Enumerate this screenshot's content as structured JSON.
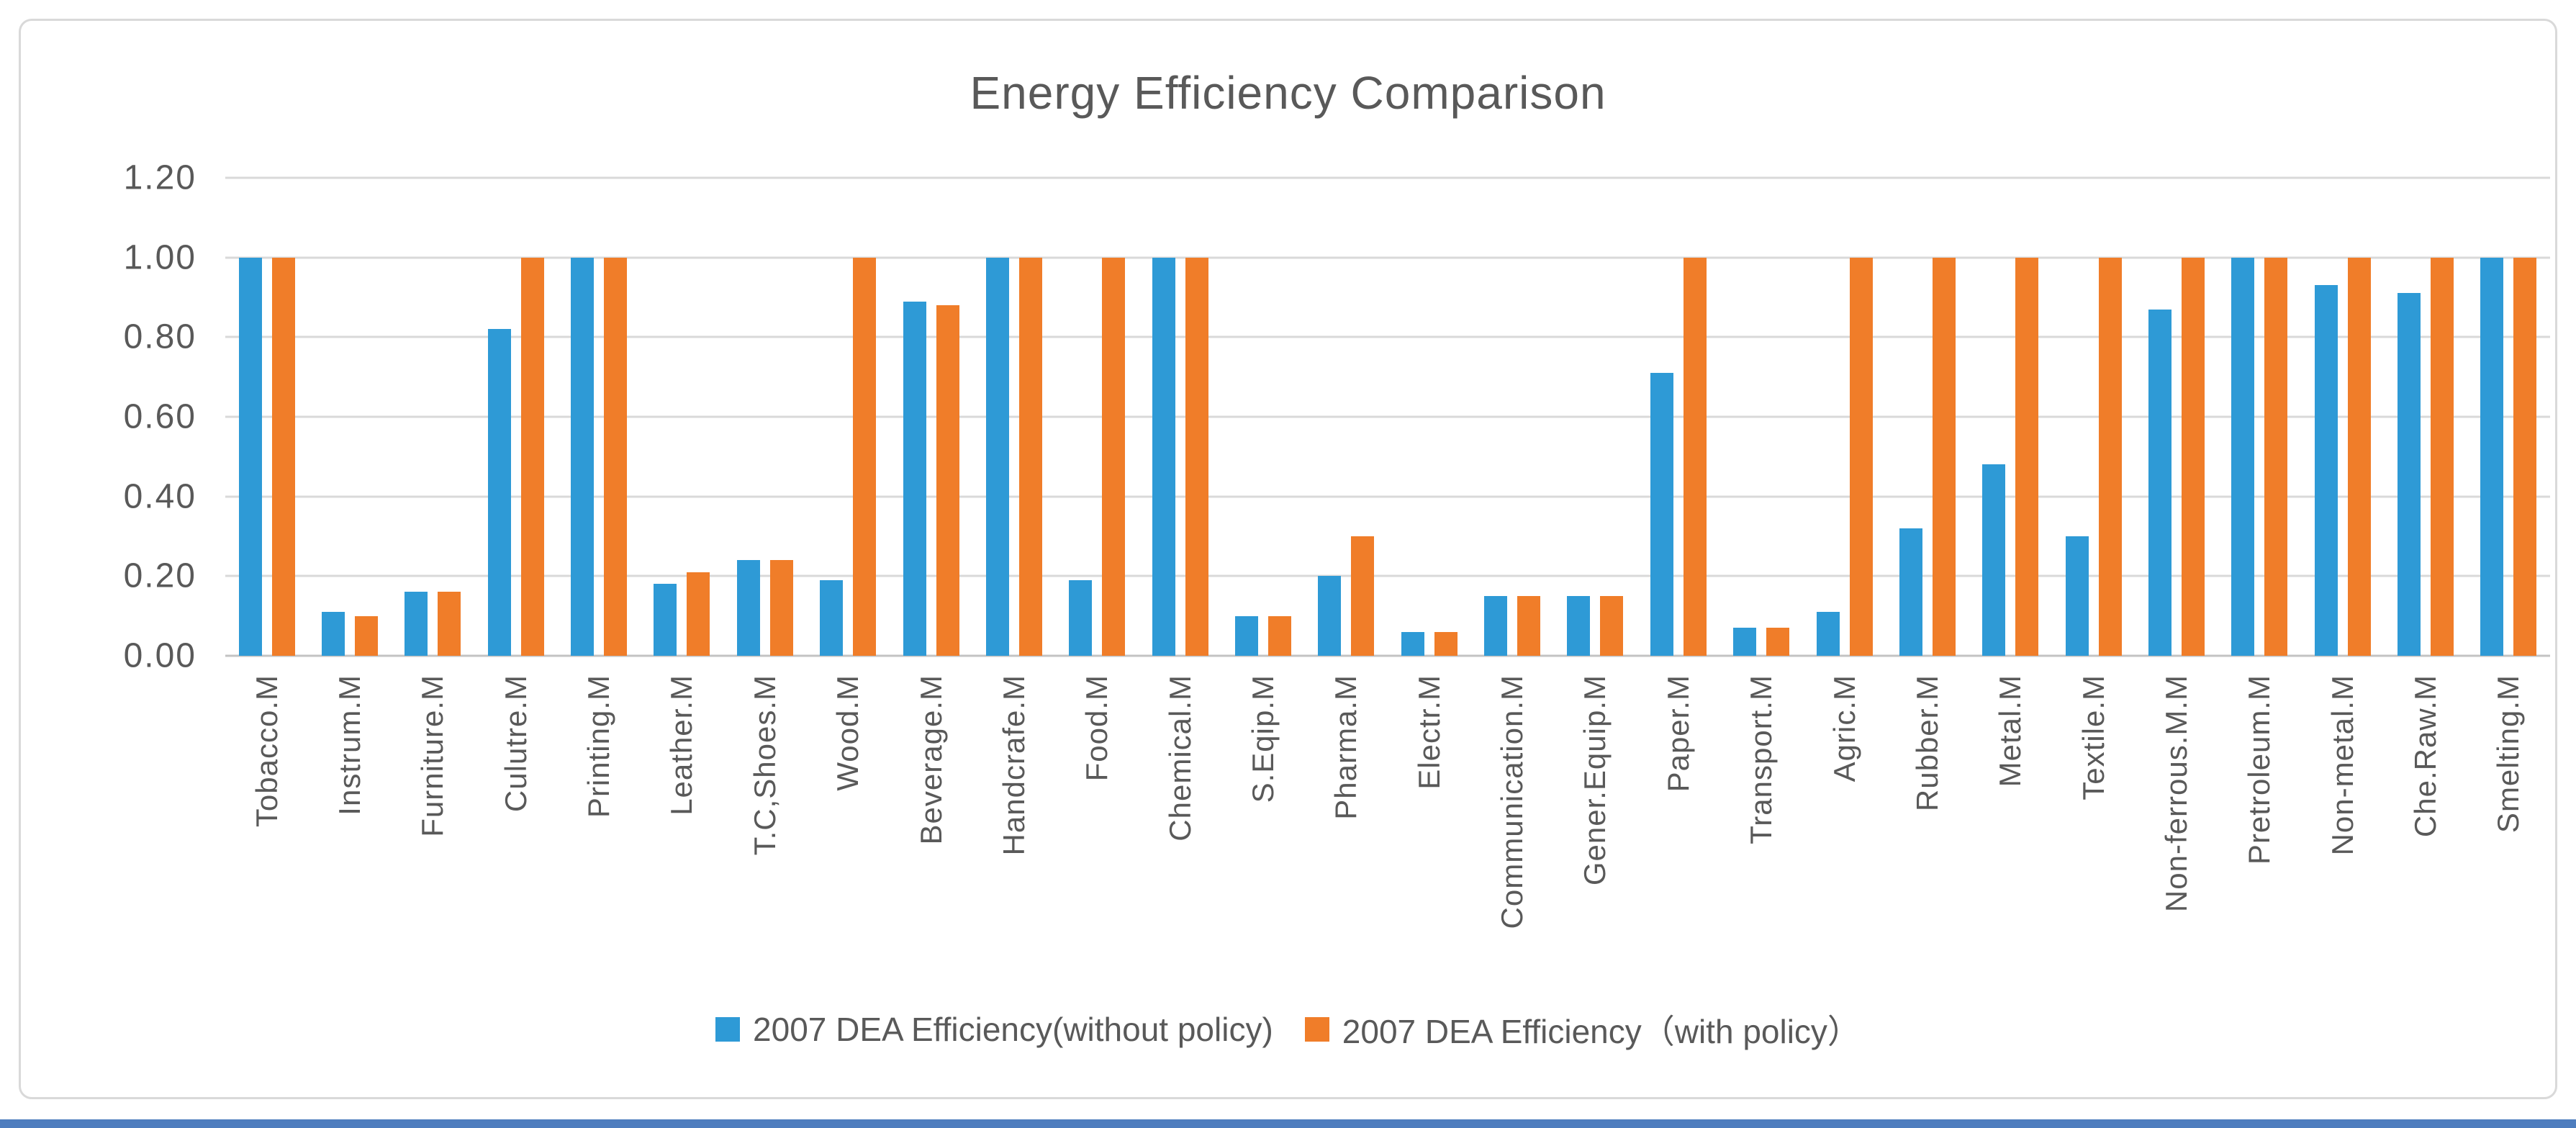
{
  "chart_data": {
    "type": "bar",
    "title": "Energy Efficiency Comparison",
    "categories": [
      "Tobacco.M",
      "Instrum.M",
      "Furniture.M",
      "Culutre.M",
      "Printing.M",
      "Leather.M",
      "T.C,Shoes.M",
      "Wood.M",
      "Beverage.M",
      "Handcrafe.M",
      "Food.M",
      "Chemical.M",
      "S.Eqip.M",
      "Pharma.M",
      "Electr.M",
      "Communication.M",
      "Gener.Equip.M",
      "Paper.M",
      "Transport.M",
      "Agric.M",
      "Rubber.M",
      "Metal.M",
      "Textile.M",
      "Non-ferrous.M.M",
      "Pretroleum.M",
      "Non-metal.M",
      "Che.Raw.M",
      "Smelting.M"
    ],
    "series": [
      {
        "name": "2007 DEA Efficiency(without policy)",
        "color": "#2e9ad6",
        "values": [
          1.0,
          0.11,
          0.16,
          0.82,
          1.0,
          0.18,
          0.24,
          0.19,
          0.89,
          1.0,
          0.19,
          1.0,
          0.1,
          0.2,
          0.06,
          0.15,
          0.15,
          0.71,
          0.07,
          0.11,
          0.32,
          0.48,
          0.3,
          0.87,
          1.0,
          0.93,
          0.91,
          1.0
        ]
      },
      {
        "name": "2007 DEA Efficiency（with policy）",
        "color": "#f07d29",
        "values": [
          1.0,
          0.1,
          0.16,
          1.0,
          1.0,
          0.21,
          0.24,
          1.0,
          0.88,
          1.0,
          1.0,
          1.0,
          0.1,
          0.3,
          0.06,
          0.15,
          0.15,
          1.0,
          0.07,
          1.0,
          1.0,
          1.0,
          1.0,
          1.0,
          1.0,
          1.0,
          1.0,
          1.0
        ]
      }
    ],
    "ylim": [
      0,
      1.2
    ],
    "yticks": [
      "1.20",
      "1.00",
      "0.80",
      "0.60",
      "0.40",
      "0.20",
      "0.00"
    ],
    "grid": true,
    "legend_position": "bottom"
  },
  "colors": {
    "text": "#595959",
    "gridline": "#d9d9d9",
    "axis_line": "#c3c3c3",
    "frame_border": "#d9d9d9",
    "bottom_rule": "#4e7dbe",
    "background": "#ffffff"
  }
}
